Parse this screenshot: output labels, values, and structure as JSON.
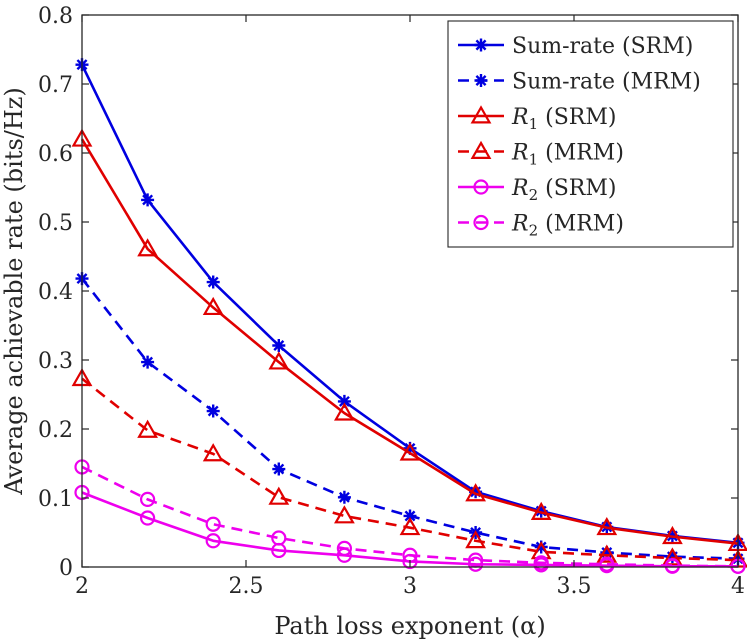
{
  "chart_data": {
    "type": "line",
    "title": "",
    "xlabel": "Path loss exponent (α)",
    "ylabel": "Average achievable rate (bits/Hz)",
    "xlim": [
      2,
      4
    ],
    "ylim": [
      0,
      0.8
    ],
    "xticks": [
      2,
      2.5,
      3,
      3.5,
      4
    ],
    "xtick_labels": [
      "2",
      "2.5",
      "3",
      "3.5",
      "4"
    ],
    "yticks": [
      0,
      0.1,
      0.2,
      0.3,
      0.4,
      0.5,
      0.6,
      0.7,
      0.8
    ],
    "ytick_labels": [
      "0",
      "0.1",
      "0.2",
      "0.3",
      "0.4",
      "0.5",
      "0.6",
      "0.7",
      "0.8"
    ],
    "grid": false,
    "legend_position": "top-right",
    "x": [
      2,
      2.2,
      2.4,
      2.6,
      2.8,
      3,
      3.2,
      3.4,
      3.6,
      3.8,
      4
    ],
    "series": [
      {
        "name": "Sum-rate (SRM)",
        "legend_main": "Sum-rate (SRM)",
        "legend_sub": "",
        "legend_rest": "",
        "color": "#0000e0",
        "dash": "solid",
        "marker": "star",
        "values": [
          0.728,
          0.532,
          0.413,
          0.321,
          0.24,
          0.172,
          0.109,
          0.081,
          0.058,
          0.045,
          0.035
        ]
      },
      {
        "name": "Sum-rate (MRM)",
        "legend_main": "Sum-rate (MRM)",
        "legend_sub": "",
        "legend_rest": "",
        "color": "#0000e0",
        "dash": "dashed",
        "marker": "star",
        "values": [
          0.418,
          0.297,
          0.226,
          0.142,
          0.101,
          0.074,
          0.05,
          0.029,
          0.021,
          0.015,
          0.012
        ]
      },
      {
        "name": "R1 (SRM)",
        "legend_main": "R",
        "legend_sub": "1",
        "legend_rest": " (SRM)",
        "color": "#e00000",
        "dash": "solid",
        "marker": "triangle",
        "values": [
          0.62,
          0.461,
          0.376,
          0.297,
          0.223,
          0.165,
          0.106,
          0.079,
          0.057,
          0.044,
          0.034
        ]
      },
      {
        "name": "R1 (MRM)",
        "legend_main": "R",
        "legend_sub": "1",
        "legend_rest": " (MRM)",
        "color": "#e00000",
        "dash": "dashed",
        "marker": "triangle",
        "values": [
          0.273,
          0.198,
          0.164,
          0.101,
          0.074,
          0.057,
          0.038,
          0.022,
          0.017,
          0.013,
          0.01
        ]
      },
      {
        "name": "R2 (SRM)",
        "legend_main": "R",
        "legend_sub": "2",
        "legend_rest": " (SRM)",
        "color": "#ee00ee",
        "dash": "solid",
        "marker": "circle",
        "values": [
          0.108,
          0.071,
          0.038,
          0.024,
          0.017,
          0.008,
          0.004,
          0.003,
          0.002,
          0.001,
          0.001
        ]
      },
      {
        "name": "R2 (MRM)",
        "legend_main": "R",
        "legend_sub": "2",
        "legend_rest": " (MRM)",
        "color": "#ee00ee",
        "dash": "dashed",
        "marker": "circle",
        "values": [
          0.145,
          0.098,
          0.062,
          0.042,
          0.027,
          0.017,
          0.01,
          0.006,
          0.004,
          0.002,
          0.001
        ]
      }
    ]
  }
}
